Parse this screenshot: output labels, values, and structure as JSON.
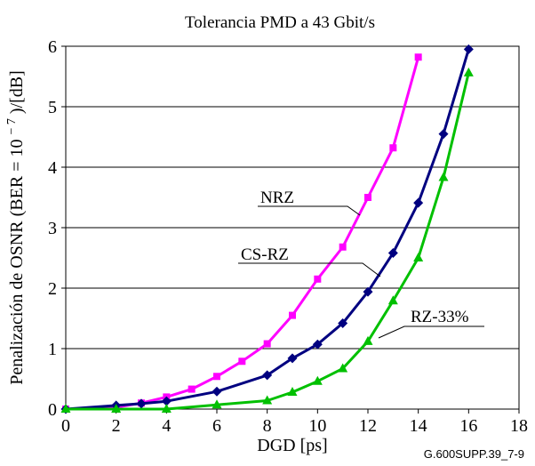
{
  "chart_data": {
    "type": "line",
    "title": "Tolerancia PMD a 43 Gbit/s",
    "xlabel": "DGD [ps]",
    "ylabel": "Penalización de OSNR (BER = 10",
    "ylabel_exp": "− 7",
    "ylabel_tail": ")/[dB]",
    "xlim": [
      0,
      18
    ],
    "ylim": [
      0,
      6
    ],
    "xticks": [
      "0",
      "2",
      "4",
      "6",
      "8",
      "10",
      "12",
      "14",
      "16",
      "18"
    ],
    "yticks": [
      "0",
      "1",
      "2",
      "3",
      "4",
      "5",
      "6"
    ],
    "grid": "horizontal",
    "series": [
      {
        "name": "NRZ",
        "color": "#ff00ff",
        "marker": "square",
        "x": [
          0,
          2,
          3,
          4,
          5,
          6,
          7,
          8,
          9,
          10,
          11,
          12,
          13,
          14
        ],
        "y": [
          0,
          0.03,
          0.1,
          0.2,
          0.33,
          0.54,
          0.79,
          1.08,
          1.55,
          2.15,
          2.68,
          3.5,
          4.32,
          5.82
        ]
      },
      {
        "name": "CS-RZ",
        "color": "#000080",
        "marker": "diamond",
        "x": [
          0,
          2,
          3,
          4,
          6,
          8,
          9,
          10,
          11,
          12,
          13,
          14,
          15,
          16
        ],
        "y": [
          0,
          0.06,
          0.09,
          0.13,
          0.29,
          0.56,
          0.84,
          1.07,
          1.42,
          1.94,
          2.58,
          3.41,
          4.55,
          5.95
        ]
      },
      {
        "name": "RZ-33%",
        "color": "#00c000",
        "marker": "triangle",
        "x": [
          0,
          2,
          4,
          6,
          8,
          9,
          10,
          11,
          12,
          13,
          14,
          15,
          16
        ],
        "y": [
          0,
          0,
          0,
          0.07,
          0.14,
          0.28,
          0.46,
          0.67,
          1.12,
          1.79,
          2.5,
          3.83,
          5.56
        ]
      }
    ],
    "annotations": [
      "NRZ",
      "CS-RZ",
      "RZ-33%"
    ],
    "footnote": "G.600SUPP.39_7-9"
  }
}
